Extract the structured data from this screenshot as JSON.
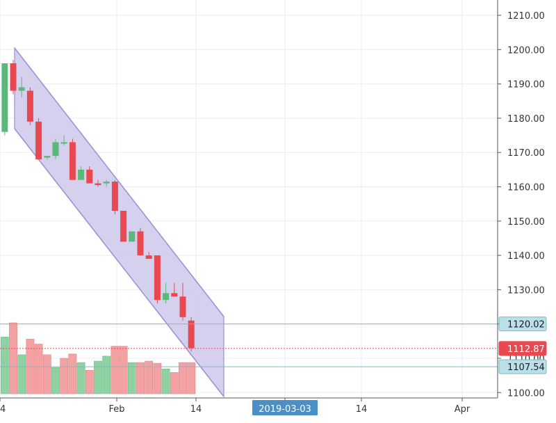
{
  "chart_data": {
    "type": "candlestick",
    "y_axis": {
      "ticks": [
        "1210.00",
        "1200.00",
        "1190.00",
        "1180.00",
        "1170.00",
        "1160.00",
        "1150.00",
        "1140.00",
        "1130.00",
        "1120.00",
        "1110.00",
        "1100.00"
      ],
      "tick_values": [
        1210,
        1200,
        1190,
        1180,
        1170,
        1160,
        1150,
        1140,
        1130,
        1120,
        1110,
        1100
      ],
      "range": [
        1099,
        1214
      ]
    },
    "x_axis": {
      "labels": [
        "4",
        "Feb",
        "14",
        "2019-03-03",
        "14",
        "Apr"
      ],
      "highlighted_label": "2019-03-03"
    },
    "price_labels": [
      {
        "text": "1120.02",
        "value": 1120.02,
        "style": "horizontal-line",
        "color": "#b9dfe9",
        "line_color": "#7fb7c9"
      },
      {
        "text": "1112.87",
        "value": 1112.87,
        "style": "last-price",
        "color": "#e8484f",
        "line_color": "#e8484f"
      },
      {
        "text": "1107.54",
        "value": 1107.54,
        "style": "horizontal-line",
        "color": "#b9dfe9",
        "line_color": "#7fb7c9"
      }
    ],
    "candles": [
      {
        "i": -1,
        "open": 1176,
        "high": 1196,
        "low": 1175,
        "close": 1196
      },
      {
        "i": 0,
        "open": 1196,
        "high": 1197,
        "low": 1187,
        "close": 1188
      },
      {
        "i": 1,
        "open": 1188,
        "high": 1192,
        "low": 1186,
        "close": 1189
      },
      {
        "i": 2,
        "open": 1188,
        "high": 1189,
        "low": 1178,
        "close": 1179
      },
      {
        "i": 3,
        "open": 1179,
        "high": 1180,
        "low": 1168,
        "close": 1168
      },
      {
        "i": 4,
        "open": 1168.5,
        "high": 1169,
        "low": 1168,
        "close": 1169
      },
      {
        "i": 5,
        "open": 1169,
        "high": 1174,
        "low": 1168,
        "close": 1173
      },
      {
        "i": 6,
        "open": 1173,
        "high": 1175,
        "low": 1172,
        "close": 1173
      },
      {
        "i": 7,
        "open": 1173,
        "high": 1174,
        "low": 1162,
        "close": 1162
      },
      {
        "i": 8,
        "open": 1162,
        "high": 1166,
        "low": 1162,
        "close": 1165
      },
      {
        "i": 9,
        "open": 1165,
        "high": 1166,
        "low": 1161,
        "close": 1161
      },
      {
        "i": 10,
        "open": 1161,
        "high": 1162,
        "low": 1160,
        "close": 1160.5
      },
      {
        "i": 11,
        "open": 1161,
        "high": 1162,
        "low": 1160,
        "close": 1161.5
      },
      {
        "i": 12,
        "open": 1161.5,
        "high": 1162,
        "low": 1152,
        "close": 1153
      },
      {
        "i": 13,
        "open": 1153,
        "high": 1153,
        "low": 1144,
        "close": 1144
      },
      {
        "i": 14,
        "open": 1144,
        "high": 1147,
        "low": 1144,
        "close": 1147
      },
      {
        "i": 15,
        "open": 1147,
        "high": 1148,
        "low": 1140,
        "close": 1140
      },
      {
        "i": 16,
        "open": 1140,
        "high": 1141,
        "low": 1139,
        "close": 1139
      },
      {
        "i": 17,
        "open": 1140,
        "high": 1140,
        "low": 1126,
        "close": 1127
      },
      {
        "i": 18,
        "open": 1127,
        "high": 1132,
        "low": 1126,
        "close": 1129
      },
      {
        "i": 19,
        "open": 1129,
        "high": 1132,
        "low": 1128,
        "close": 1128
      },
      {
        "i": 20,
        "open": 1128,
        "high": 1132,
        "low": 1121,
        "close": 1122
      },
      {
        "i": 21,
        "open": 1121,
        "high": 1122,
        "low": 1112,
        "close": 1113
      }
    ],
    "volume_direction": [
      "up",
      "down",
      "up",
      "down",
      "down",
      "down",
      "up",
      "down",
      "down",
      "up",
      "down",
      "up",
      "up",
      "down",
      "down",
      "up",
      "down",
      "down",
      "down",
      "up",
      "down",
      "down",
      "down"
    ],
    "volume_relative": [
      0.8,
      1.0,
      0.55,
      0.77,
      0.7,
      0.55,
      0.37,
      0.5,
      0.56,
      0.44,
      0.33,
      0.46,
      0.53,
      0.67,
      0.67,
      0.44,
      0.44,
      0.46,
      0.43,
      0.35,
      0.3,
      0.44,
      0.44
    ],
    "channel": {
      "type": "parallel-channel",
      "color": "#9b8fd6",
      "fill": "#cfc8ec"
    },
    "colors": {
      "up": "#5cb87a",
      "down": "#e8484f",
      "vol_up": "#8fd1a2",
      "vol_down": "#f3a2a3",
      "axis_text": "#333333",
      "grid": "#e7eef3"
    }
  }
}
